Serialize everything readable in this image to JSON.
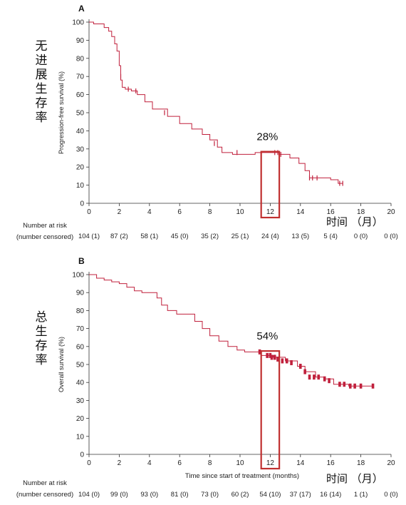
{
  "chart_data": [
    {
      "panel": "A",
      "type": "line",
      "ylabel": "Progression-free survival (%)",
      "chinese_label": "无进展生存率",
      "time_label": "时间 （月）",
      "highlight_label": "28%",
      "highlight_month": 12,
      "xlim": [
        0,
        20
      ],
      "ylim": [
        0,
        100
      ],
      "xticks": [
        0,
        2,
        4,
        6,
        8,
        10,
        12,
        14,
        16,
        18,
        20
      ],
      "yticks": [
        0,
        10,
        20,
        30,
        40,
        50,
        60,
        70,
        80,
        90,
        100
      ],
      "curve_color": "#c0203c",
      "box_color": "#c03030",
      "x": [
        0,
        0.3,
        0.3,
        1.0,
        1.0,
        1.3,
        1.3,
        1.5,
        1.5,
        1.7,
        1.7,
        1.85,
        1.85,
        2.0,
        2.0,
        2.1,
        2.1,
        2.2,
        2.2,
        2.4,
        2.4,
        2.8,
        2.8,
        3.2,
        3.2,
        3.7,
        3.7,
        4.2,
        4.2,
        5.2,
        5.2,
        6.0,
        6.0,
        6.8,
        6.8,
        7.5,
        7.5,
        8.0,
        8.0,
        8.5,
        8.5,
        8.8,
        8.8,
        9.5,
        9.5,
        11.0,
        11.0,
        12.6,
        12.6,
        13.3,
        13.3,
        13.9,
        13.9,
        14.3,
        14.3,
        14.6,
        14.6,
        15.0,
        15.0,
        16.0,
        16.0,
        16.5,
        16.5,
        16.8
      ],
      "y": [
        100,
        100,
        99,
        99,
        97,
        97,
        95,
        95,
        92,
        92,
        88,
        88,
        84,
        84,
        76,
        76,
        68,
        68,
        64,
        64,
        63,
        63,
        62,
        62,
        60,
        60,
        56,
        56,
        52,
        52,
        48,
        48,
        44,
        44,
        41,
        41,
        38,
        38,
        35,
        35,
        31,
        31,
        28,
        28,
        27,
        27,
        28,
        28,
        27,
        27,
        25,
        25,
        22,
        22,
        18,
        18,
        14,
        14,
        14,
        14,
        13,
        13,
        11,
        11
      ],
      "censor_x": [
        2.1,
        2.6,
        3.1,
        5.0,
        8.3,
        9.8,
        12.3,
        12.5,
        12.7,
        14.6,
        14.8,
        15.1,
        16.6,
        16.8
      ],
      "censor_y": [
        70,
        63,
        62,
        50,
        33,
        28,
        28,
        28,
        27,
        14,
        14,
        14,
        11,
        11
      ],
      "risk_header": [
        "Number at risk",
        "(number censored)"
      ],
      "risk_values": [
        "104 (1)",
        "87 (2)",
        "58 (1)",
        "45 (0)",
        "35 (2)",
        "25 (1)",
        "24 (4)",
        "13 (5)",
        "5 (4)",
        "0 (0)",
        "0 (0)"
      ]
    },
    {
      "panel": "B",
      "type": "line",
      "ylabel": "Overall survival (%)",
      "xlabel": "Time since start of treatment (months)",
      "chinese_label": "总生存率",
      "time_label": "时间 （月）",
      "highlight_label": "54%",
      "highlight_month": 12,
      "xlim": [
        0,
        20
      ],
      "ylim": [
        0,
        100
      ],
      "xticks": [
        0,
        2,
        4,
        6,
        8,
        10,
        12,
        14,
        16,
        18,
        20
      ],
      "yticks": [
        0,
        10,
        20,
        30,
        40,
        50,
        60,
        70,
        80,
        90,
        100
      ],
      "curve_color": "#c0203c",
      "box_color": "#c03030",
      "x": [
        0,
        0.5,
        0.5,
        1.0,
        1.0,
        1.5,
        1.5,
        2.0,
        2.0,
        2.5,
        2.5,
        3.0,
        3.0,
        3.5,
        3.5,
        4.5,
        4.5,
        4.8,
        4.8,
        5.2,
        5.2,
        5.8,
        5.8,
        7.0,
        7.0,
        7.5,
        7.5,
        8.0,
        8.0,
        8.6,
        8.6,
        9.2,
        9.2,
        9.8,
        9.8,
        10.3,
        10.3,
        11.0,
        11.0,
        11.4,
        11.4,
        12.2,
        12.2,
        13.0,
        13.0,
        13.8,
        13.8,
        14.3,
        14.3,
        15.0,
        15.0,
        15.6,
        15.6,
        16.2,
        16.2,
        17.2,
        17.2,
        18.8
      ],
      "y": [
        100,
        100,
        98,
        98,
        97,
        97,
        96,
        96,
        95,
        95,
        93,
        93,
        91,
        91,
        90,
        90,
        87,
        87,
        83,
        83,
        80,
        80,
        78,
        78,
        74,
        74,
        70,
        70,
        66,
        66,
        63,
        63,
        60,
        60,
        58,
        58,
        57,
        57,
        57,
        57,
        55,
        55,
        54,
        54,
        52,
        52,
        49,
        49,
        46,
        46,
        43,
        43,
        42,
        42,
        39,
        39,
        38,
        38
      ],
      "censor_x": [
        11.3,
        11.8,
        12.0,
        12.1,
        12.3,
        12.5,
        12.8,
        13.1,
        13.4,
        14.0,
        14.3,
        14.6,
        14.9,
        15.2,
        15.6,
        15.9,
        16.6,
        16.9,
        17.3,
        17.6,
        18.0,
        18.8
      ],
      "censor_y": [
        57,
        55,
        55,
        54,
        54,
        53,
        52,
        52,
        51,
        49,
        46,
        43,
        43,
        43,
        42,
        41,
        39,
        39,
        38,
        38,
        38,
        38
      ],
      "risk_header": [
        "Number at risk",
        "(number censored)"
      ],
      "risk_values": [
        "104 (0)",
        "99 (0)",
        "93 (0)",
        "81 (0)",
        "73 (0)",
        "60 (2)",
        "54 (10)",
        "37 (17)",
        "16 (14)",
        "1 (1)",
        "0 (0)"
      ]
    }
  ]
}
